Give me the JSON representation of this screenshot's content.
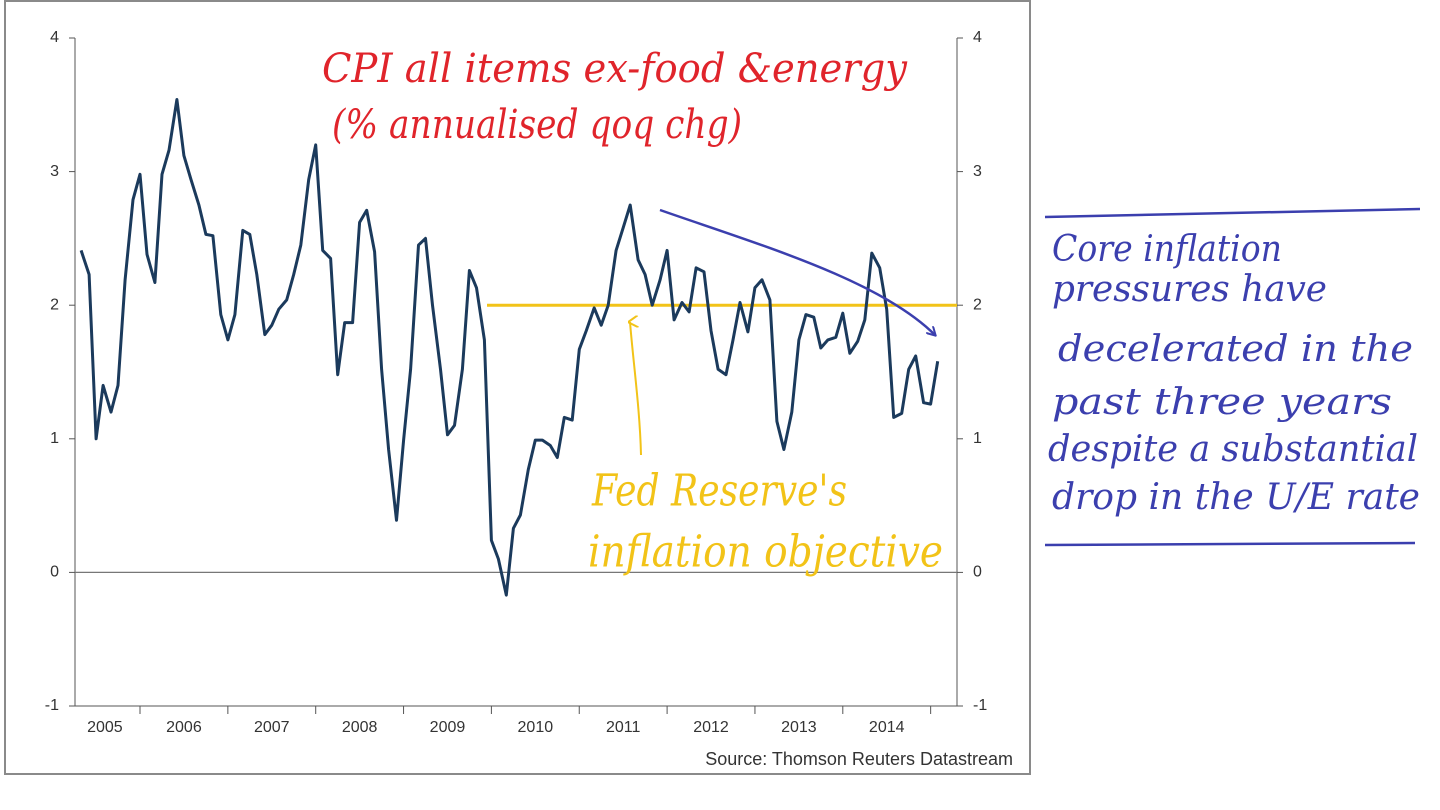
{
  "chart_data": {
    "type": "line",
    "annotations": {
      "title_lines": [
        "CPI all items ex-food &energy",
        "(% annualised qoq chg)"
      ],
      "target_lines": [
        "Fed Reserve's",
        "inflation objective"
      ],
      "comment_lines": [
        "Core inflation",
        "pressures have",
        "decelerated in the",
        "past three years",
        "despite a substantial",
        "drop in the U/E rate"
      ]
    },
    "source": "Source: Thomson Reuters Datastream",
    "x": [
      2005.33,
      2005.42,
      2005.5,
      2005.58,
      2005.67,
      2005.75,
      2005.83,
      2005.92,
      2006,
      2006.08,
      2006.17,
      2006.25,
      2006.33,
      2006.42,
      2006.5,
      2006.58,
      2006.67,
      2006.75,
      2006.83,
      2006.92,
      2007,
      2007.08,
      2007.17,
      2007.25,
      2007.33,
      2007.42,
      2007.5,
      2007.58,
      2007.67,
      2007.75,
      2007.83,
      2007.92,
      2008,
      2008.08,
      2008.17,
      2008.25,
      2008.33,
      2008.42,
      2008.5,
      2008.58,
      2008.67,
      2008.75,
      2008.83,
      2008.92,
      2009,
      2009.08,
      2009.17,
      2009.25,
      2009.33,
      2009.42,
      2009.5,
      2009.58,
      2009.67,
      2009.75,
      2009.83,
      2009.92,
      2010,
      2010.08,
      2010.17,
      2010.25,
      2010.33,
      2010.42,
      2010.5,
      2010.58,
      2010.67,
      2010.75,
      2010.83,
      2010.92,
      2011,
      2011.08,
      2011.17,
      2011.25,
      2011.33,
      2011.42,
      2011.5,
      2011.58,
      2011.67,
      2011.75,
      2011.83,
      2011.92,
      2012,
      2012.08,
      2012.17,
      2012.25,
      2012.33,
      2012.42,
      2012.5,
      2012.58,
      2012.67,
      2012.75,
      2012.83,
      2012.92,
      2013,
      2013.08,
      2013.17,
      2013.25,
      2013.33,
      2013.42,
      2013.5,
      2013.58,
      2013.67,
      2013.75,
      2013.83,
      2013.92,
      2014,
      2014.08,
      2014.17,
      2014.25,
      2014.33,
      2014.42,
      2014.5,
      2014.58,
      2014.67,
      2014.75,
      2014.83,
      2014.92,
      2015,
      2015.08
    ],
    "series": [
      {
        "name": "CPI ex-food & energy",
        "color": "#1b3a5c",
        "values": [
          2.41,
          2.23,
          1.0,
          1.4,
          1.2,
          1.4,
          2.19,
          2.79,
          2.98,
          2.38,
          2.17,
          2.98,
          3.16,
          3.54,
          3.12,
          2.94,
          2.75,
          2.53,
          2.52,
          1.93,
          1.74,
          1.93,
          2.56,
          2.53,
          2.23,
          1.78,
          1.85,
          1.97,
          2.04,
          2.23,
          2.45,
          2.94,
          3.2,
          2.41,
          2.35,
          1.48,
          1.87,
          1.87,
          2.62,
          2.71,
          2.4,
          1.52,
          0.92,
          0.39,
          0.99,
          1.52,
          2.45,
          2.5,
          2.0,
          1.52,
          1.03,
          1.1,
          1.52,
          2.26,
          2.13,
          1.74,
          0.24,
          0.1,
          -0.17,
          0.33,
          0.43,
          0.77,
          0.99,
          0.99,
          0.95,
          0.86,
          1.16,
          1.14,
          1.67,
          1.81,
          1.98,
          1.85,
          2.0,
          2.41,
          2.58,
          2.75,
          2.34,
          2.23,
          2.0,
          2.19,
          2.41,
          1.89,
          2.02,
          1.95,
          2.28,
          2.25,
          1.81,
          1.52,
          1.48,
          1.74,
          2.02,
          1.8,
          2.13,
          2.19,
          2.04,
          1.13,
          0.92,
          1.2,
          1.74,
          1.93,
          1.91,
          1.68,
          1.74,
          1.76,
          1.94,
          1.64,
          1.73,
          1.89,
          2.39,
          2.28,
          1.97,
          1.16,
          1.19,
          1.52,
          1.62,
          1.27,
          1.26,
          1.58
        ]
      }
    ],
    "reference_line": {
      "y": 2,
      "x_start": 2009.95,
      "color": "#f2c318"
    },
    "zero_line": true,
    "xlim": [
      2005.26,
      2015.3
    ],
    "xticks": [
      2006,
      2007,
      2008,
      2009,
      2010,
      2011,
      2012,
      2013,
      2014,
      2015
    ],
    "xlabels": [
      {
        "value": 2005.6,
        "label": "2005"
      },
      {
        "value": 2006.5,
        "label": "2006"
      },
      {
        "value": 2007.5,
        "label": "2007"
      },
      {
        "value": 2008.5,
        "label": "2008"
      },
      {
        "value": 2009.5,
        "label": "2009"
      },
      {
        "value": 2010.5,
        "label": "2010"
      },
      {
        "value": 2011.5,
        "label": "2011"
      },
      {
        "value": 2012.5,
        "label": "2012"
      },
      {
        "value": 2013.5,
        "label": "2013"
      },
      {
        "value": 2014.5,
        "label": "2014"
      }
    ],
    "ylim": [
      -1,
      4
    ],
    "yticks": [
      -1,
      0,
      1,
      2,
      3,
      4
    ],
    "grid": false
  }
}
